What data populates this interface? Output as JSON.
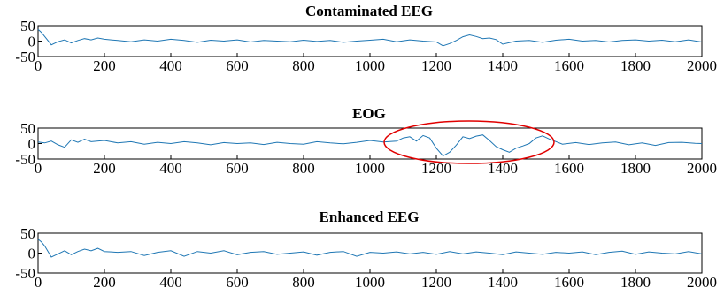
{
  "chart_data": [
    {
      "type": "line",
      "title": "Contaminated EEG",
      "xlabel": "",
      "ylabel": "",
      "xlim": [
        0,
        2000
      ],
      "ylim": [
        -50,
        50
      ],
      "xticks": [
        0,
        200,
        400,
        600,
        800,
        1000,
        1200,
        1400,
        1600,
        1800,
        2000
      ],
      "yticks": [
        50,
        0,
        -50
      ],
      "grid": false,
      "color": "#1f77b4",
      "series": [
        {
          "x": [
            0,
            10,
            20,
            40,
            60,
            80,
            100,
            120,
            140,
            160,
            180,
            200,
            240,
            280,
            320,
            360,
            400,
            440,
            480,
            520,
            560,
            600,
            640,
            680,
            720,
            760,
            800,
            840,
            880,
            920,
            960,
            1000,
            1040,
            1080,
            1120,
            1160,
            1200,
            1220,
            1240,
            1260,
            1280,
            1300,
            1320,
            1340,
            1360,
            1380,
            1400,
            1440,
            1480,
            1520,
            1560,
            1600,
            1640,
            1680,
            1720,
            1760,
            1800,
            1840,
            1880,
            1920,
            1960,
            2000
          ],
          "values": [
            38,
            28,
            15,
            -12,
            -2,
            4,
            -6,
            2,
            8,
            4,
            10,
            6,
            2,
            -2,
            4,
            0,
            6,
            2,
            -4,
            3,
            0,
            4,
            -3,
            2,
            0,
            -2,
            3,
            -1,
            2,
            -4,
            0,
            3,
            6,
            -2,
            4,
            0,
            -3,
            -15,
            -8,
            2,
            14,
            20,
            15,
            8,
            10,
            5,
            -10,
            0,
            2,
            -4,
            3,
            6,
            0,
            2,
            -3,
            2,
            4,
            0,
            3,
            -2,
            4,
            -3
          ]
        }
      ]
    },
    {
      "type": "line",
      "title": "EOG",
      "xlabel": "",
      "ylabel": "",
      "xlim": [
        0,
        2000
      ],
      "ylim": [
        -50,
        50
      ],
      "xticks": [
        0,
        200,
        400,
        600,
        800,
        1000,
        1200,
        1400,
        1600,
        1800,
        2000
      ],
      "yticks": [
        50,
        0,
        -50
      ],
      "grid": false,
      "color": "#1f77b4",
      "series": [
        {
          "x": [
            0,
            20,
            40,
            60,
            80,
            100,
            120,
            140,
            160,
            200,
            240,
            280,
            320,
            360,
            400,
            440,
            480,
            520,
            560,
            600,
            640,
            680,
            720,
            760,
            800,
            840,
            880,
            920,
            960,
            1000,
            1040,
            1080,
            1100,
            1120,
            1140,
            1160,
            1180,
            1200,
            1220,
            1240,
            1260,
            1280,
            1300,
            1320,
            1340,
            1360,
            1380,
            1400,
            1420,
            1440,
            1460,
            1480,
            1500,
            1520,
            1540,
            1580,
            1620,
            1660,
            1700,
            1740,
            1780,
            1820,
            1860,
            1900,
            1940,
            1980,
            2000
          ],
          "values": [
            5,
            2,
            8,
            -4,
            -12,
            12,
            4,
            14,
            6,
            10,
            2,
            6,
            -2,
            4,
            0,
            6,
            2,
            -4,
            3,
            0,
            2,
            -3,
            4,
            0,
            -2,
            6,
            2,
            -1,
            4,
            10,
            5,
            8,
            18,
            22,
            8,
            26,
            18,
            -15,
            -40,
            -28,
            -5,
            22,
            16,
            24,
            28,
            10,
            -10,
            -20,
            -28,
            -15,
            -8,
            0,
            18,
            25,
            15,
            -2,
            3,
            -3,
            2,
            5,
            -4,
            2,
            -6,
            3,
            4,
            1,
            0
          ]
        }
      ]
    },
    {
      "type": "line",
      "title": "Enhanced EEG",
      "xlabel": "",
      "ylabel": "",
      "xlim": [
        0,
        2000
      ],
      "ylim": [
        -50,
        50
      ],
      "xticks": [
        0,
        200,
        400,
        600,
        800,
        1000,
        1200,
        1400,
        1600,
        1800,
        2000
      ],
      "yticks": [
        50,
        0,
        -50
      ],
      "grid": false,
      "color": "#1f77b4",
      "series": [
        {
          "x": [
            0,
            10,
            20,
            40,
            60,
            80,
            100,
            120,
            140,
            160,
            180,
            200,
            240,
            280,
            320,
            360,
            400,
            440,
            480,
            520,
            560,
            600,
            640,
            680,
            720,
            760,
            800,
            840,
            880,
            920,
            960,
            1000,
            1040,
            1080,
            1120,
            1160,
            1200,
            1240,
            1280,
            1320,
            1360,
            1400,
            1440,
            1480,
            1520,
            1560,
            1600,
            1640,
            1680,
            1720,
            1760,
            1800,
            1840,
            1880,
            1920,
            1960,
            2000
          ],
          "values": [
            35,
            28,
            18,
            -10,
            -2,
            6,
            -4,
            4,
            10,
            6,
            12,
            4,
            2,
            4,
            -6,
            2,
            6,
            -8,
            4,
            0,
            6,
            -4,
            2,
            4,
            -3,
            0,
            3,
            -5,
            2,
            4,
            -8,
            2,
            0,
            3,
            -2,
            2,
            -3,
            4,
            -2,
            3,
            0,
            -4,
            3,
            0,
            -3,
            2,
            0,
            3,
            -4,
            2,
            5,
            -3,
            3,
            0,
            -2,
            4,
            -2
          ]
        }
      ]
    }
  ]
}
